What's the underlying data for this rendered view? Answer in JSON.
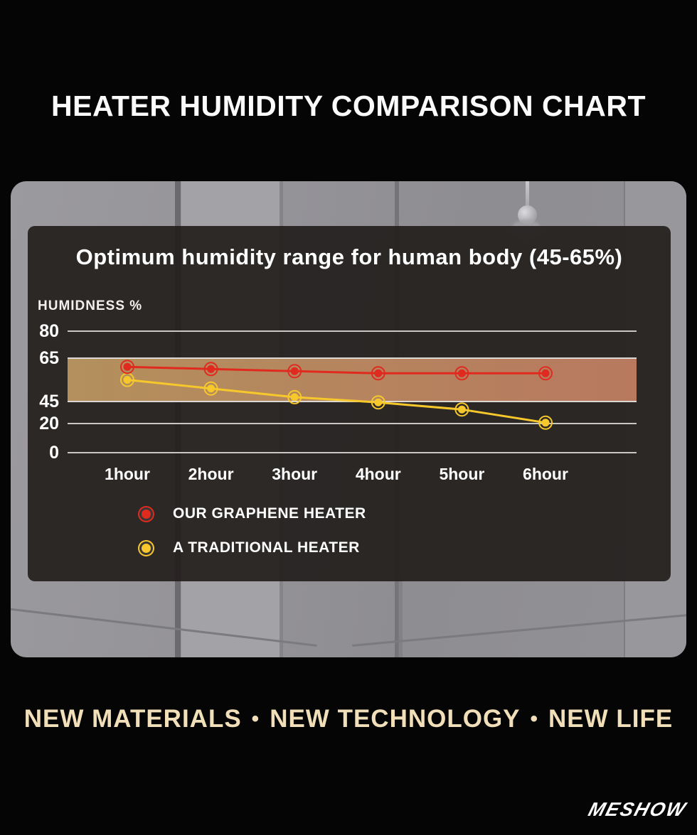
{
  "page": {
    "title": "HEATER HUMIDITY COMPARISON CHART",
    "tagline": {
      "segments": [
        "NEW MATERIALS",
        "NEW TECHNOLOGY",
        "NEW LIFE"
      ],
      "bullet": "•"
    },
    "logo": "MESHOW"
  },
  "colors": {
    "accent_red": "#e02a1f",
    "accent_yellow": "#f6c82c",
    "band_left": "#b3905d",
    "band_right": "#b8795f",
    "band_edge": "#dbd8d4",
    "gridline": "#c9c7c4",
    "panel_bg": "#3a3634",
    "tagline_text": "#f0dfb8"
  },
  "chart_data": {
    "type": "line",
    "title": "Optimum humidity range for human body (45-65%)",
    "ylabel": "HUMIDNESS %",
    "xlabel": "",
    "categories": [
      "1hour",
      "2hour",
      "3hour",
      "4hour",
      "5hour",
      "6hour"
    ],
    "y_ticks": [
      80,
      65,
      45,
      20,
      0
    ],
    "ylim": [
      0,
      80
    ],
    "grid": true,
    "legend_position": "bottom-left",
    "optimal_band": {
      "from": 45,
      "to": 65,
      "label": "45-65%"
    },
    "series": [
      {
        "name": "OUR GRAPHENE HEATER",
        "color": "#e02a1f",
        "values": [
          61,
          60,
          59,
          58,
          58,
          58
        ]
      },
      {
        "name": "A TRADITIONAL HEATER",
        "color": "#f6c82c",
        "values": [
          55,
          51,
          47,
          44,
          36,
          21
        ]
      }
    ]
  }
}
